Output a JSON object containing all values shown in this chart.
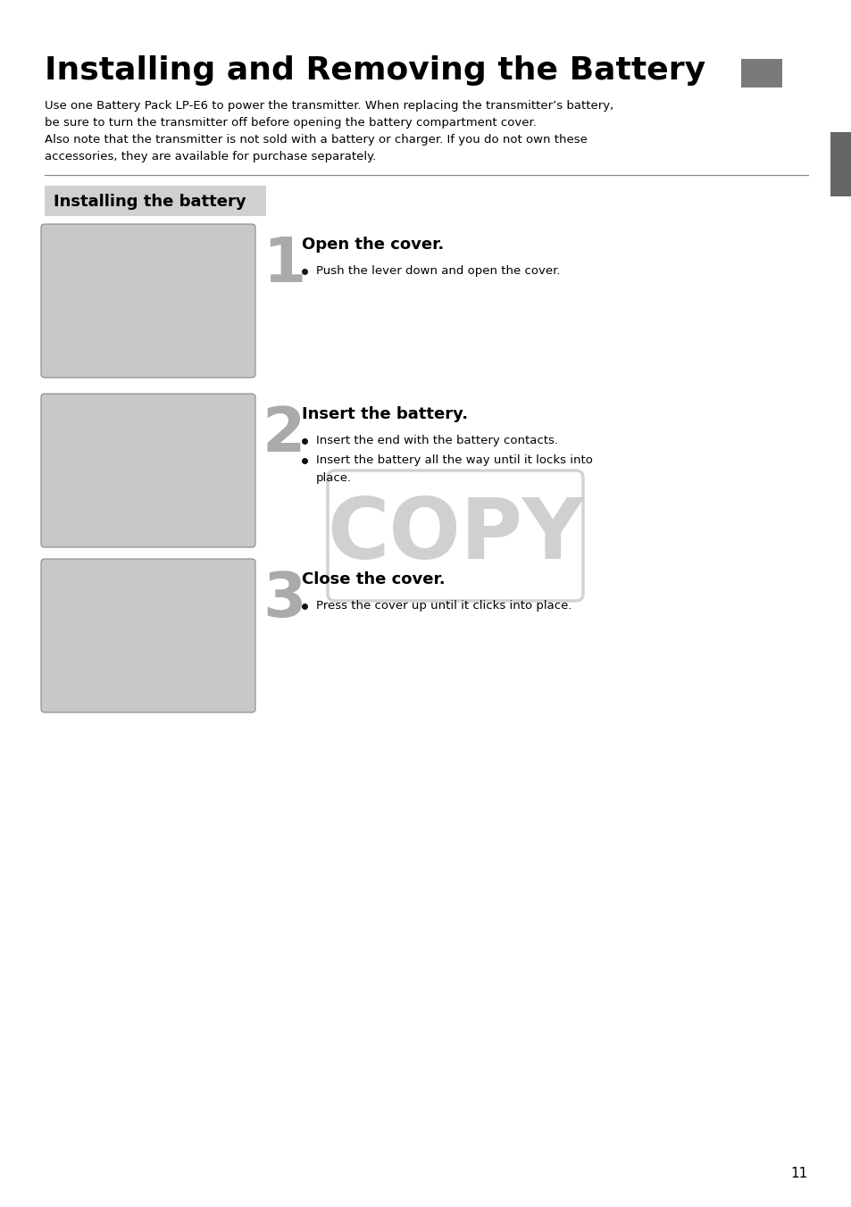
{
  "title": "Installing and Removing the Battery",
  "title_rect_color": "#7a7a7a",
  "body_text_lines": [
    "Use one Battery Pack LP-E6 to power the transmitter. When replacing the transmitter’s battery,",
    "be sure to turn the transmitter off before opening the battery compartment cover.",
    "Also note that the transmitter is not sold with a battery or charger. If you do not own these",
    "accessories, they are available for purchase separately."
  ],
  "section_title": "Installing the battery",
  "section_bg": "#d0d0d0",
  "steps": [
    {
      "number": "1",
      "heading": "Open the cover.",
      "bullets": [
        "Push the lever down and open the cover."
      ]
    },
    {
      "number": "2",
      "heading": "Insert the battery.",
      "bullets": [
        "Insert the end with the battery contacts.",
        "Insert the battery all the way until it locks into\n    place."
      ]
    },
    {
      "number": "3",
      "heading": "Close the cover.",
      "bullets": [
        "Press the cover up until it clicks into place."
      ]
    }
  ],
  "copy_text": "COPY",
  "copy_color": "#c8c8c8",
  "copy_border_color": "#c0c0c0",
  "page_number": "11",
  "bg_color": "#ffffff",
  "text_color": "#000000",
  "image_bg": "#c8c8c8",
  "image_border": "#888888",
  "side_bar_color": "#666666",
  "rule_color": "#888888",
  "step_num_color": "#aaaaaa",
  "bullet_char": "●"
}
